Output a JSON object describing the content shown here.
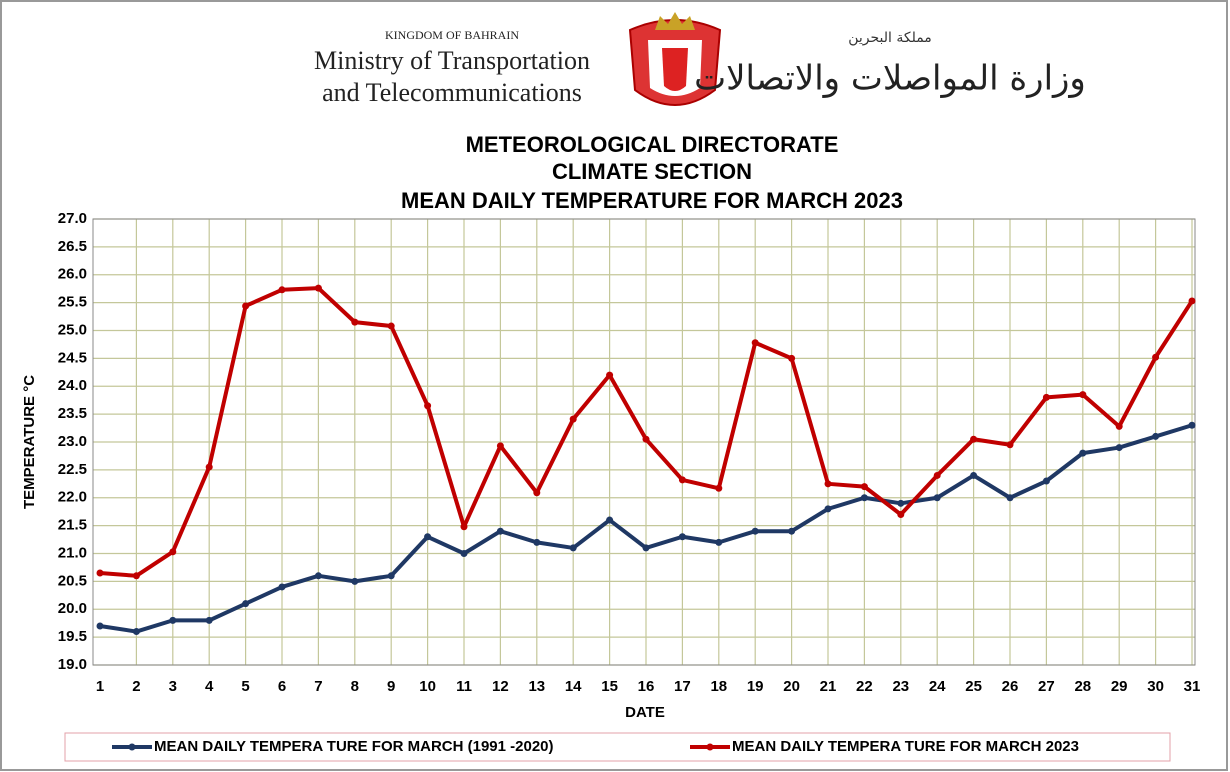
{
  "header": {
    "kingdom": "KINGDOM OF BAHRAIN",
    "ministry_line1": "Ministry of Transportation",
    "ministry_line2": "and Telecommunications",
    "arabic_kingdom": "مملكة البحرين",
    "arabic_ministry": "وزارة المواصلات والاتصالات"
  },
  "chart_data": {
    "type": "line",
    "title_lines": [
      "METEOROLOGICAL DIRECTORATE",
      "CLIMATE SECTION",
      "MEAN DAILY TEMPERATURE FOR MARCH 2023"
    ],
    "x_label": "DATE",
    "y_label": "TEMPERATURE °C",
    "categories": [
      "1",
      "2",
      "3",
      "4",
      "5",
      "6",
      "7",
      "8",
      "9",
      "10",
      "11",
      "12",
      "13",
      "14",
      "15",
      "16",
      "17",
      "18",
      "19",
      "20",
      "21",
      "22",
      "23",
      "24",
      "25",
      "26",
      "27",
      "28",
      "29",
      "30",
      "31"
    ],
    "series": [
      {
        "name": "MEAN DAILY TEMPERA TURE FOR MARCH (1991 -2020)",
        "color": "#1f3864",
        "values": [
          19.7,
          19.6,
          19.8,
          19.8,
          20.1,
          20.4,
          20.6,
          20.5,
          20.6,
          21.3,
          21.0,
          21.4,
          21.2,
          21.1,
          21.6,
          21.1,
          21.3,
          21.2,
          21.4,
          21.4,
          21.8,
          22.0,
          21.9,
          22.0,
          22.4,
          22.0,
          22.3,
          22.8,
          22.9,
          23.1,
          23.3
        ]
      },
      {
        "name": "MEAN DAILY TEMPERA TURE FOR MARCH 2023",
        "color": "#c00000",
        "values": [
          20.65,
          20.6,
          21.03,
          22.55,
          25.44,
          25.73,
          25.76,
          25.15,
          25.08,
          23.65,
          21.48,
          22.93,
          22.09,
          23.41,
          24.2,
          23.05,
          22.32,
          22.17,
          24.78,
          24.5,
          22.25,
          22.2,
          21.7,
          22.4,
          23.05,
          22.95,
          23.8,
          23.85,
          23.28,
          24.52,
          25.53
        ]
      }
    ],
    "ylim": [
      19,
      27
    ],
    "yticks": [
      {
        "value": 19,
        "label": "19.0"
      },
      {
        "value": 19.5,
        "label": "19.5"
      },
      {
        "value": 20,
        "label": "20.0"
      },
      {
        "value": 20.5,
        "label": "20.5"
      },
      {
        "value": 21,
        "label": "21.0"
      },
      {
        "value": 21.5,
        "label": "21.5"
      },
      {
        "value": 22,
        "label": "22.0"
      },
      {
        "value": 22.5,
        "label": "22.5"
      },
      {
        "value": 23,
        "label": "23.0"
      },
      {
        "value": 23.5,
        "label": "23.5"
      },
      {
        "value": 24,
        "label": "24.0"
      },
      {
        "value": 24.5,
        "label": "24.5"
      },
      {
        "value": 25,
        "label": "25.0"
      },
      {
        "value": 25.5,
        "label": "25.5"
      },
      {
        "value": 26,
        "label": "26.0"
      },
      {
        "value": 26.5,
        "label": "26.5"
      },
      {
        "value": 27,
        "label": "27.0"
      }
    ],
    "grid": true,
    "grid_color": "#c4c79a",
    "legend": "bottom"
  }
}
